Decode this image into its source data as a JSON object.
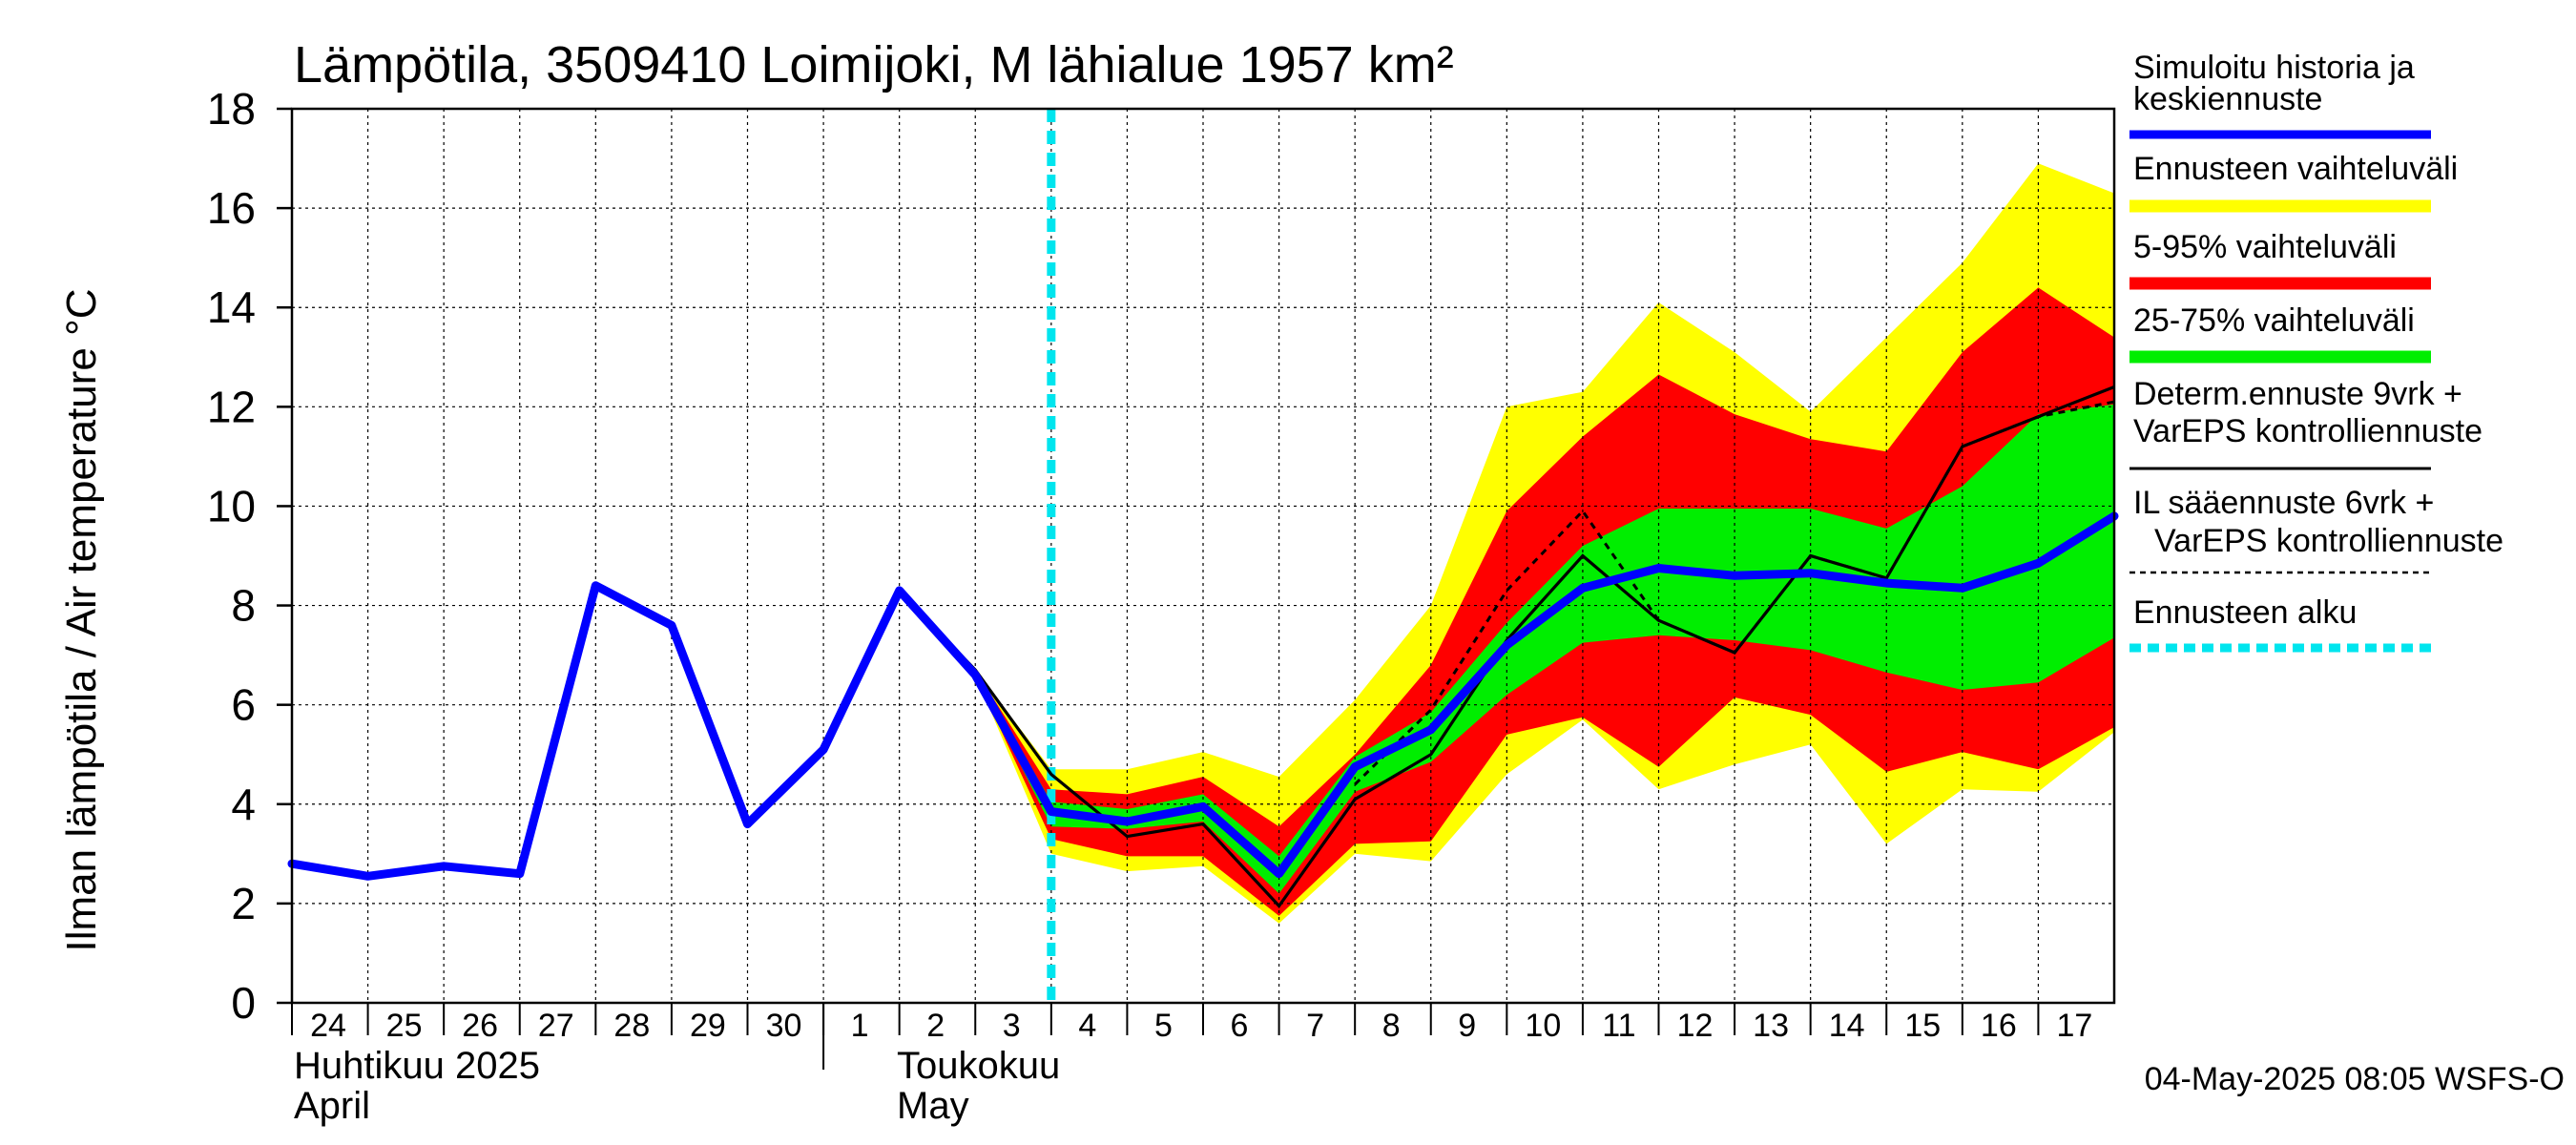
{
  "chart_data": {
    "type": "area",
    "title": "Lämpötila, 3509410 Loimijoki, M lähialue 1957 km²",
    "ylabel": "Ilman lämpötila / Air temperature    °C",
    "ylim": [
      0,
      18
    ],
    "yticks": [
      0,
      2,
      4,
      6,
      8,
      10,
      12,
      14,
      16,
      18
    ],
    "x_range": [
      0,
      24
    ],
    "day_labels": [
      "24",
      "25",
      "26",
      "27",
      "28",
      "29",
      "30",
      "1",
      "2",
      "3",
      "4",
      "5",
      "6",
      "7",
      "8",
      "9",
      "10",
      "11",
      "12",
      "13",
      "14",
      "15",
      "16",
      "17"
    ],
    "month_labels": [
      {
        "fi": "Huhtikuu  2025",
        "en": "April"
      },
      {
        "fi": "Toukokuu",
        "en": "May"
      }
    ],
    "forecast_start_x": 10,
    "footer": "04-May-2025 08:05 WSFS-O",
    "colors": {
      "yellow": "#ffff00",
      "red": "#ff0000",
      "green": "#00ee00",
      "blue": "#0000ff",
      "black": "#000000",
      "cyan": "#00e5ee",
      "grid": "#000000"
    },
    "legend": [
      {
        "label": "Simuloitu historia ja keskiennuste",
        "style": "blue"
      },
      {
        "label": "Ennusteen vaihteluväli",
        "style": "yellow"
      },
      {
        "label": "5-95% vaihteluväli",
        "style": "red"
      },
      {
        "label": "25-75% vaihteluväli",
        "style": "green"
      },
      {
        "label": "Determ.ennuste 9vrk + VarEPS kontrolliennuste",
        "style": "black"
      },
      {
        "label": "IL sääennuste 6vrk  + VarEPS kontrolliennuste",
        "style": "dashed"
      },
      {
        "label": "Ennusteen alku",
        "style": "cyan"
      }
    ],
    "series": [
      {
        "name": "Simuloitu historia ja keskiennuste",
        "x": [
          0,
          1,
          2,
          3,
          4,
          5,
          6,
          7,
          8,
          9,
          10,
          11,
          12,
          13,
          14,
          15,
          16,
          17,
          18,
          19,
          20,
          21,
          22,
          23,
          24
        ],
        "values": [
          2.8,
          2.55,
          2.75,
          2.6,
          8.4,
          7.6,
          3.6,
          5.1,
          8.3,
          6.6,
          3.85,
          3.65,
          3.95,
          2.6,
          4.75,
          5.5,
          7.2,
          8.35,
          8.75,
          8.6,
          8.65,
          8.45,
          8.35,
          8.85,
          9.8
        ]
      },
      {
        "name": "Determ.ennuste 9vrk + VarEPS kontrolliennuste",
        "x": [
          8,
          9,
          10,
          11,
          12,
          13,
          14,
          15,
          16,
          17,
          18,
          19,
          20,
          21,
          22,
          23,
          24
        ],
        "values": [
          8.3,
          6.7,
          4.6,
          3.35,
          3.6,
          1.95,
          4.1,
          5.0,
          7.3,
          9.0,
          7.7,
          7.05,
          9.0,
          8.55,
          11.2,
          11.8,
          12.4
        ]
      },
      {
        "name": "IL sääennuste 6vrk  + VarEPS kontrolliennuste",
        "x": [
          14,
          15,
          16,
          17,
          18,
          19,
          20,
          21,
          22,
          23,
          24
        ],
        "values": [
          4.4,
          5.9,
          8.3,
          9.9,
          7.7,
          7.05,
          9.0,
          8.55,
          11.2,
          11.8,
          12.1
        ]
      }
    ],
    "bands": {
      "x": [
        9,
        10,
        11,
        12,
        13,
        14,
        15,
        16,
        17,
        18,
        19,
        20,
        21,
        22,
        23,
        24
      ],
      "yellow": {
        "upper": [
          6.7,
          4.7,
          4.7,
          5.05,
          4.55,
          6.1,
          8.0,
          12.0,
          12.3,
          14.1,
          13.1,
          11.9,
          13.4,
          14.9,
          16.9,
          16.3
        ],
        "lower": [
          6.6,
          3.0,
          2.65,
          2.75,
          1.6,
          3.0,
          2.85,
          4.6,
          5.7,
          4.3,
          4.8,
          5.2,
          3.2,
          4.3,
          4.25,
          5.45
        ]
      },
      "red": {
        "upper": [
          6.7,
          4.3,
          4.2,
          4.55,
          3.55,
          5.0,
          6.8,
          9.9,
          11.4,
          12.65,
          11.85,
          11.35,
          11.1,
          13.1,
          14.4,
          13.4
        ],
        "lower": [
          6.6,
          3.3,
          2.95,
          2.95,
          1.75,
          3.2,
          3.25,
          5.4,
          5.75,
          4.75,
          6.15,
          5.8,
          4.65,
          5.05,
          4.7,
          5.55
        ]
      },
      "green": {
        "upper": [
          6.7,
          4.05,
          3.9,
          4.2,
          2.95,
          4.95,
          5.85,
          7.65,
          9.2,
          9.95,
          9.95,
          9.95,
          9.55,
          10.4,
          11.85,
          12.05
        ],
        "lower": [
          6.6,
          3.55,
          3.5,
          3.65,
          2.2,
          4.25,
          4.85,
          6.2,
          7.25,
          7.4,
          7.3,
          7.1,
          6.65,
          6.3,
          6.45,
          7.35
        ]
      }
    }
  }
}
